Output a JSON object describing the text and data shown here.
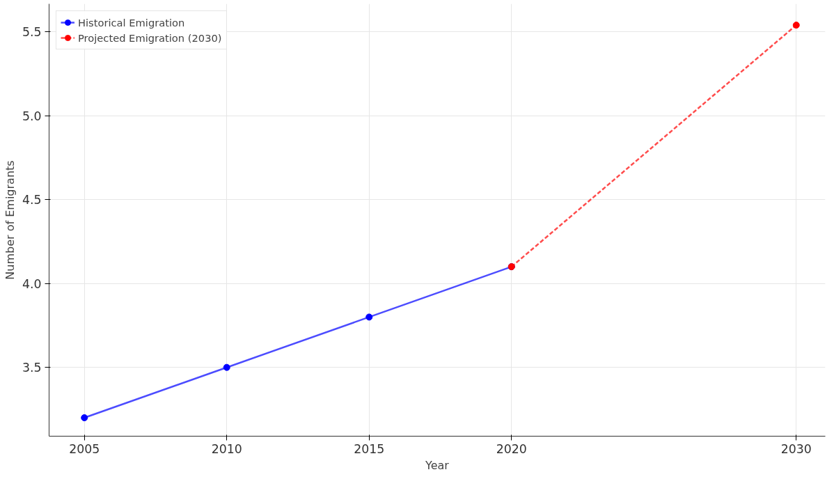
{
  "chart_data": {
    "type": "line",
    "xlabel": "Year",
    "ylabel": "Number of Emigrants",
    "xlim": [
      2003.76,
      2031.02
    ],
    "ylim": [
      3.09,
      5.667
    ],
    "xticks": [
      2005,
      2010,
      2015,
      2020,
      2030
    ],
    "yticks": [
      3.5,
      {
        "value": 4,
        "label": "4.0"
      },
      4.5,
      {
        "value": 5,
        "label": "5.0"
      },
      5.5
    ],
    "grid": true,
    "legend": "top left",
    "marker": "circle",
    "series": [
      {
        "name": "Historical Emigration",
        "color": "#0000ff",
        "x": [
          2005,
          2010,
          2015,
          2020
        ],
        "values": [
          3.2,
          3.5,
          3.8,
          4.1
        ],
        "line_style": "solid"
      },
      {
        "name": "Projected Emigration (2030)",
        "color": "#ff0000",
        "x": [
          2020,
          2030
        ],
        "values": [
          4.1,
          5.54
        ],
        "line_style": "dashed"
      }
    ]
  }
}
